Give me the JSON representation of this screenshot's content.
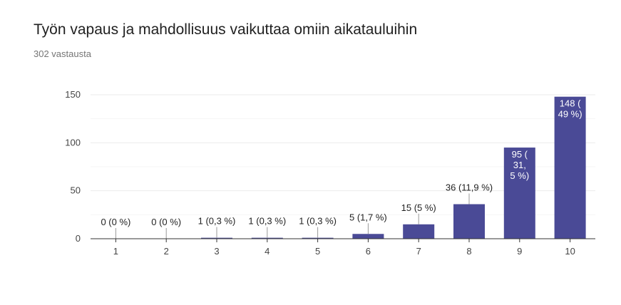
{
  "header": {
    "title": "Työn vapaus ja mahdollisuus vaikuttaa omiin aikatauluihin",
    "subtitle": "302 vastausta"
  },
  "colors": {
    "bar": "#4a4a96",
    "grid": "#ebebeb",
    "axis": "#333333",
    "label_outside": "#222222",
    "label_inside": "#ffffff"
  },
  "chart_data": {
    "type": "bar",
    "title": "Työn vapaus ja mahdollisuus vaikuttaa omiin aikatauluihin",
    "categories": [
      "1",
      "2",
      "3",
      "4",
      "5",
      "6",
      "7",
      "8",
      "9",
      "10"
    ],
    "values": [
      0,
      0,
      1,
      1,
      1,
      5,
      15,
      36,
      95,
      148
    ],
    "data_labels": [
      [
        "0 (0 %)"
      ],
      [
        "0 (0 %)"
      ],
      [
        "1 (0,3 %)"
      ],
      [
        "1 (0,3 %)"
      ],
      [
        "1 (0,3 %)"
      ],
      [
        "5 (1,7 %)"
      ],
      [
        "15 (5 %)"
      ],
      [
        "36 (11,9 %)"
      ],
      [
        "95 (",
        "31,",
        "5 %)"
      ],
      [
        "148 (",
        "49 %)"
      ]
    ],
    "ylim": [
      0,
      150
    ],
    "yticks": [
      0,
      50,
      100,
      150
    ],
    "grid": true,
    "legend": "none"
  }
}
